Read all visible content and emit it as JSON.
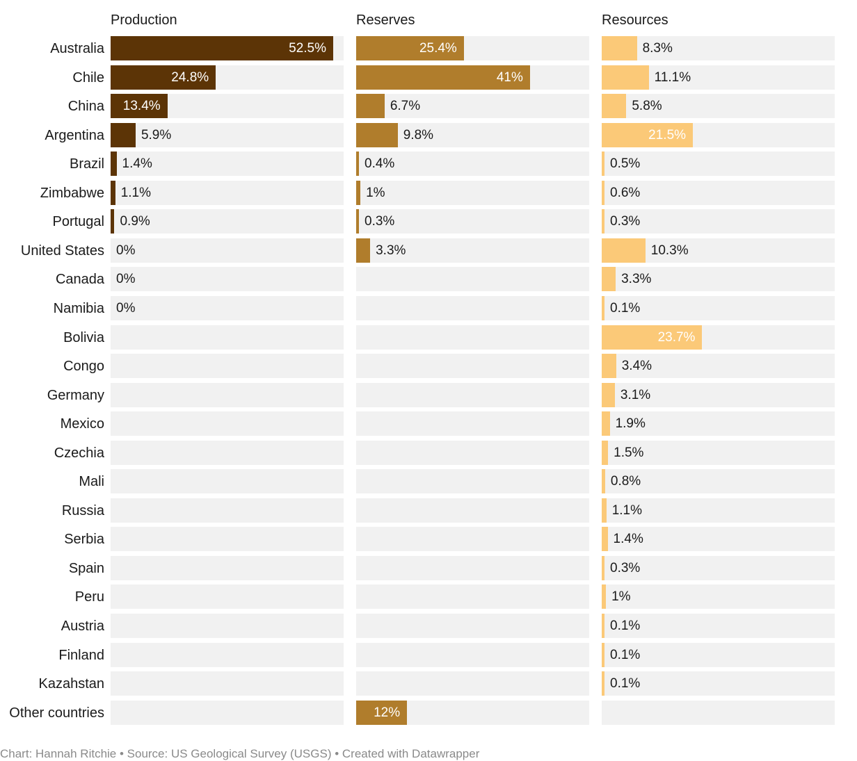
{
  "chart_data": {
    "type": "bar",
    "panels": [
      {
        "name": "Production",
        "color": "#5c3406",
        "values": [
          "52.5",
          "24.8",
          "13.4",
          "5.9",
          "1.4",
          "1.1",
          "0.9",
          "0",
          "0",
          "0",
          null,
          null,
          null,
          null,
          null,
          null,
          null,
          null,
          null,
          null,
          null,
          null,
          null,
          null
        ],
        "labels": [
          "52.5%",
          "24.8%",
          "13.4%",
          "5.9%",
          "1.4%",
          "1.1%",
          "0.9%",
          "0%",
          "0%",
          "0%",
          null,
          null,
          null,
          null,
          null,
          null,
          null,
          null,
          null,
          null,
          null,
          null,
          null,
          null
        ]
      },
      {
        "name": "Reserves",
        "color": "#b07d2c",
        "values": [
          "25.4",
          "41",
          "6.7",
          "9.8",
          "0.4",
          "1",
          "0.3",
          "3.3",
          null,
          null,
          null,
          null,
          null,
          null,
          null,
          null,
          null,
          null,
          null,
          null,
          null,
          null,
          null,
          "12"
        ],
        "labels": [
          "25.4%",
          "41%",
          "6.7%",
          "9.8%",
          "0.4%",
          "1%",
          "0.3%",
          "3.3%",
          null,
          null,
          null,
          null,
          null,
          null,
          null,
          null,
          null,
          null,
          null,
          null,
          null,
          null,
          null,
          "12%"
        ]
      },
      {
        "name": "Resources",
        "color": "#fbc978",
        "values": [
          "8.3",
          "11.1",
          "5.8",
          "21.5",
          "0.5",
          "0.6",
          "0.3",
          "10.3",
          "3.3",
          "0.1",
          "23.7",
          "3.4",
          "3.1",
          "1.9",
          "1.5",
          "0.8",
          "1.1",
          "1.4",
          "0.3",
          "1",
          "0.1",
          "0.1",
          "0.1",
          null
        ],
        "labels": [
          "8.3%",
          "11.1%",
          "5.8%",
          "21.5%",
          "0.5%",
          "0.6%",
          "0.3%",
          "10.3%",
          "3.3%",
          "0.1%",
          "23.7%",
          "3.4%",
          "3.1%",
          "1.9%",
          "1.5%",
          "0.8%",
          "1.1%",
          "1.4%",
          "0.3%",
          "1%",
          "0.1%",
          "0.1%",
          "0.1%",
          null
        ]
      }
    ],
    "categories": [
      "Australia",
      "Chile",
      "China",
      "Argentina",
      "Brazil",
      "Zimbabwe",
      "Portugal",
      "United States",
      "Canada",
      "Namibia",
      "Bolivia",
      "Congo",
      "Germany",
      "Mexico",
      "Czechia",
      "Mali",
      "Russia",
      "Serbia",
      "Spain",
      "Peru",
      "Austria",
      "Finland",
      "Kazahstan",
      "Other countries"
    ],
    "xlim": [
      0,
      55
    ],
    "footer": "Chart: Hannah Ritchie • Source: US Geological Survey (USGS) • Created with Datawrapper"
  }
}
